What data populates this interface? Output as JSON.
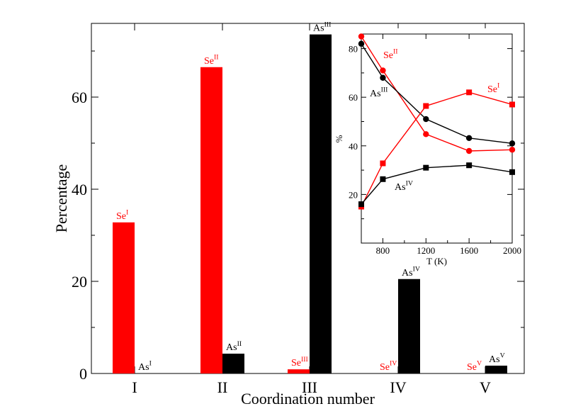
{
  "chart_data": [
    {
      "type": "bar",
      "xlabel": "Coordination number",
      "ylabel": "Percentage",
      "ylim": [
        0,
        76
      ],
      "yticks": [
        "0",
        "20",
        "40",
        "60"
      ],
      "categories": [
        "I",
        "II",
        "III",
        "IV",
        "V"
      ],
      "series": [
        {
          "name": "Se",
          "color": "#ff0000",
          "values": [
            32.8,
            66.5,
            0.9,
            0.0,
            0.0
          ],
          "labels": [
            {
              "base": "Se",
              "sup": "I"
            },
            {
              "base": "Se",
              "sup": "II"
            },
            {
              "base": "Se",
              "sup": "III"
            },
            {
              "base": "Se",
              "sup": "IV"
            },
            {
              "base": "Se",
              "sup": "V"
            }
          ]
        },
        {
          "name": "As",
          "color": "#000000",
          "values": [
            0.0,
            4.3,
            73.6,
            20.5,
            1.7
          ],
          "labels": [
            {
              "base": "As",
              "sup": "I"
            },
            {
              "base": "As",
              "sup": "II"
            },
            {
              "base": "As",
              "sup": "III"
            },
            {
              "base": "As",
              "sup": "IV"
            },
            {
              "base": "As",
              "sup": "V"
            }
          ]
        }
      ]
    },
    {
      "type": "line",
      "xlabel": "T (K)",
      "ylabel": "%",
      "xlim": [
        600,
        2000
      ],
      "ylim": [
        0,
        86
      ],
      "xticks": [
        "800",
        "1200",
        "1600",
        "2000"
      ],
      "yticks": [
        "20",
        "40",
        "60",
        "80"
      ],
      "x": [
        600,
        800,
        1200,
        1600,
        2000
      ],
      "series": [
        {
          "label": {
            "base": "Se",
            "sup": "II"
          },
          "marker": "circle",
          "color": "#ff0000",
          "values": [
            85,
            71,
            44.8,
            37.9,
            38.4
          ]
        },
        {
          "label": {
            "base": "As",
            "sup": "III"
          },
          "marker": "circle",
          "color": "#000000",
          "values": [
            82,
            68,
            51,
            43.2,
            41
          ]
        },
        {
          "label": {
            "base": "Se",
            "sup": "I"
          },
          "marker": "square",
          "color": "#ff0000",
          "values": [
            15,
            32.8,
            56.4,
            62,
            57
          ]
        },
        {
          "label": {
            "base": "As",
            "sup": "IV"
          },
          "marker": "square",
          "color": "#000000",
          "values": [
            16,
            26.3,
            31,
            32,
            29.2
          ]
        }
      ]
    }
  ]
}
